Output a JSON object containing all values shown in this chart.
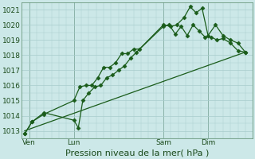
{
  "bg_color": "#cce8e8",
  "grid_color": "#a8cccc",
  "line_color": "#1a5c1a",
  "marker_color": "#1a5c1a",
  "xlabel": "Pression niveau de la mer( hPa )",
  "xlabel_fontsize": 8,
  "ylim": [
    1012.5,
    1021.5
  ],
  "yticks": [
    1013,
    1014,
    1015,
    1016,
    1017,
    1018,
    1019,
    1020,
    1021
  ],
  "xtick_labels": [
    "Ven",
    "Lun",
    "Sam",
    "Dim"
  ],
  "xtick_positions": [
    0.5,
    3.5,
    9.5,
    12.5
  ],
  "xlim": [
    0,
    15.5
  ],
  "vline_positions": [
    0.5,
    3.5,
    9.5,
    12.5
  ],
  "series1_x": [
    0.2,
    0.7,
    1.5,
    3.5,
    3.9,
    4.3,
    4.7,
    5.1,
    5.5,
    5.9,
    6.3,
    6.7,
    7.1,
    7.5,
    7.9,
    9.5,
    10.0,
    10.4,
    10.9,
    11.3,
    11.7,
    12.1,
    12.5,
    13.0,
    13.5,
    14.0,
    14.5,
    15.0
  ],
  "series1_y": [
    1012.8,
    1013.6,
    1014.1,
    1015.0,
    1015.9,
    1016.0,
    1016.0,
    1016.5,
    1017.2,
    1017.2,
    1017.5,
    1018.1,
    1018.1,
    1018.4,
    1018.4,
    1020.0,
    1019.9,
    1020.0,
    1020.5,
    1021.2,
    1020.8,
    1021.1,
    1019.3,
    1020.0,
    1019.3,
    1019.0,
    1018.8,
    1018.2
  ],
  "series2_x": [
    0.2,
    0.7,
    1.5,
    3.5,
    3.8,
    4.1,
    4.5,
    4.9,
    5.3,
    5.7,
    6.1,
    6.5,
    6.9,
    7.3,
    7.7,
    9.5,
    9.9,
    10.3,
    10.7,
    11.1,
    11.5,
    11.9,
    12.3,
    12.7,
    13.1,
    13.5,
    14.0,
    14.5,
    15.0
  ],
  "series2_y": [
    1012.8,
    1013.6,
    1014.2,
    1013.7,
    1013.2,
    1015.0,
    1015.5,
    1015.9,
    1016.0,
    1016.5,
    1016.7,
    1017.0,
    1017.3,
    1017.8,
    1018.2,
    1019.9,
    1020.0,
    1019.4,
    1019.9,
    1019.3,
    1020.0,
    1019.6,
    1019.2,
    1019.2,
    1019.0,
    1019.1,
    1018.8,
    1018.3,
    1018.2
  ],
  "trend_x": [
    0.2,
    15.0
  ],
  "trend_y": [
    1013.0,
    1018.2
  ],
  "figsize": [
    3.2,
    2.0
  ],
  "dpi": 100
}
